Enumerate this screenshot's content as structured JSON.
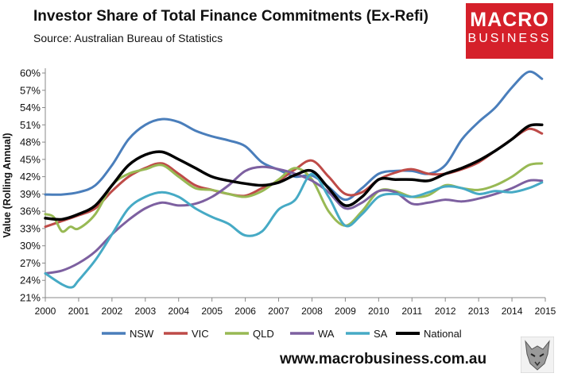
{
  "header": {
    "title": "Investor Share of Total Finance Commitments (Ex-Refi)",
    "subtitle": "Source: Australian Bureau of Statistics"
  },
  "logo": {
    "line1": "MACRO",
    "line2": "BUSINESS"
  },
  "footer": {
    "url": "www.macrobusiness.com.au"
  },
  "chart_data": {
    "type": "line",
    "title": "Investor Share of Total Finance Commitments (Ex-Refi)",
    "ylabel": "Value (Rolling Annual)",
    "xlabel": "",
    "ylim": [
      21,
      60
    ],
    "xlim": [
      2000,
      2015
    ],
    "grid": false,
    "legend_position": "bottom",
    "x_ticks": [
      "2000",
      "2001",
      "2002",
      "2003",
      "2004",
      "2005",
      "2006",
      "2007",
      "2008",
      "2009",
      "2010",
      "2011",
      "2012",
      "2013",
      "2014",
      "2015"
    ],
    "y_ticks": [
      "21%",
      "24%",
      "27%",
      "30%",
      "33%",
      "36%",
      "39%",
      "42%",
      "45%",
      "48%",
      "51%",
      "54%",
      "57%",
      "60%"
    ],
    "series": [
      {
        "name": "NSW",
        "color": "#4a7ebb",
        "width": 3,
        "x": [
          2000,
          2000.5,
          2001,
          2001.5,
          2002,
          2002.5,
          2003,
          2003.5,
          2004,
          2004.5,
          2005,
          2005.5,
          2006,
          2006.5,
          2007,
          2007.5,
          2008,
          2008.5,
          2009,
          2009.5,
          2010,
          2010.5,
          2011,
          2011.5,
          2012,
          2012.5,
          2013,
          2013.5,
          2014,
          2014.5,
          2014.9
        ],
        "y": [
          38.9,
          38.9,
          39.3,
          40.5,
          44,
          48.5,
          51,
          52,
          51.5,
          50,
          49,
          48.3,
          47.3,
          44.5,
          43.2,
          42,
          42.2,
          40.2,
          38,
          40,
          42.5,
          43,
          43,
          42.5,
          44,
          48.5,
          51.5,
          54,
          57.5,
          60.2,
          59
        ]
      },
      {
        "name": "VIC",
        "color": "#be4b48",
        "width": 3,
        "x": [
          2000,
          2000.5,
          2001,
          2001.5,
          2002,
          2002.5,
          2003,
          2003.5,
          2004,
          2004.5,
          2005,
          2005.5,
          2006,
          2006.5,
          2007,
          2007.5,
          2008,
          2008.5,
          2009,
          2009.5,
          2010,
          2010.5,
          2011,
          2011.5,
          2012,
          2012.5,
          2013,
          2013.5,
          2014,
          2014.5,
          2014.9
        ],
        "y": [
          33.3,
          34.3,
          35.3,
          36.5,
          39.5,
          42,
          43.5,
          44.3,
          42.5,
          40.5,
          39.7,
          39,
          38.7,
          40,
          41.3,
          43.3,
          44.8,
          42,
          39,
          39.3,
          41.5,
          42.7,
          43.3,
          42.5,
          42.5,
          43.3,
          44.5,
          46.5,
          48.5,
          50.3,
          49.5
        ]
      },
      {
        "name": "QLD",
        "color": "#98b954",
        "width": 3,
        "x": [
          2000,
          2000.25,
          2000.5,
          2000.75,
          2001,
          2001.5,
          2002,
          2002.5,
          2003,
          2003.5,
          2004,
          2004.5,
          2005,
          2005.5,
          2006,
          2006.5,
          2007,
          2007.5,
          2008,
          2008.5,
          2009,
          2009.5,
          2010,
          2010.5,
          2011,
          2011.5,
          2012,
          2012.5,
          2013,
          2013.5,
          2014,
          2014.5,
          2014.9
        ],
        "y": [
          35.5,
          35,
          32.5,
          33.3,
          33,
          35.5,
          40.5,
          42.5,
          43.3,
          44,
          42,
          40,
          39.7,
          39,
          38.5,
          39.5,
          41.5,
          43.5,
          41.5,
          36,
          33.5,
          36,
          39.5,
          39.5,
          38.5,
          38.8,
          40.5,
          40,
          39.7,
          40.5,
          42,
          44,
          44.3
        ]
      },
      {
        "name": "WA",
        "color": "#7d60a0",
        "width": 3,
        "x": [
          2000,
          2000.5,
          2001,
          2001.5,
          2002,
          2002.5,
          2003,
          2003.5,
          2004,
          2004.5,
          2005,
          2005.5,
          2006,
          2006.5,
          2007,
          2007.5,
          2008,
          2008.5,
          2009,
          2009.5,
          2010,
          2010.5,
          2011,
          2011.5,
          2012,
          2012.5,
          2013,
          2013.5,
          2014,
          2014.5,
          2014.9
        ],
        "y": [
          25.2,
          25.7,
          27,
          29,
          32,
          34.5,
          36.5,
          37.5,
          37,
          37.3,
          38.5,
          40.5,
          43,
          43.7,
          43.3,
          42.5,
          41.3,
          39.3,
          36.5,
          37.5,
          39.5,
          39.3,
          37.3,
          37.5,
          38,
          37.7,
          38.2,
          39,
          40,
          41.3,
          41.3
        ]
      },
      {
        "name": "SA",
        "color": "#46aac5",
        "width": 3,
        "x": [
          2000,
          2000.5,
          2000.8,
          2001,
          2001.5,
          2002,
          2002.5,
          2003,
          2003.5,
          2004,
          2004.5,
          2005,
          2005.5,
          2006,
          2006.5,
          2007,
          2007.5,
          2008,
          2008.5,
          2009,
          2009.5,
          2010,
          2010.5,
          2011,
          2011.5,
          2012,
          2012.5,
          2013,
          2013.5,
          2014,
          2014.5,
          2014.9
        ],
        "y": [
          25.2,
          23.3,
          22.8,
          24,
          27.5,
          32,
          36.5,
          38.5,
          39.3,
          38.5,
          36.5,
          35,
          33.8,
          31.8,
          32.5,
          36.3,
          38,
          42.5,
          38.5,
          33.5,
          35.5,
          38.5,
          39,
          38.5,
          39.3,
          40.3,
          40,
          39,
          39.5,
          39.3,
          40,
          41
        ]
      },
      {
        "name": "National",
        "color": "#000000",
        "width": 3.5,
        "x": [
          2000,
          2000.5,
          2001,
          2001.5,
          2002,
          2002.5,
          2003,
          2003.5,
          2004,
          2004.5,
          2005,
          2005.5,
          2006,
          2006.5,
          2007,
          2007.5,
          2008,
          2008.5,
          2009,
          2009.5,
          2010,
          2010.5,
          2011,
          2011.5,
          2012,
          2012.5,
          2013,
          2013.5,
          2014,
          2014.5,
          2014.9
        ],
        "y": [
          34.8,
          34.6,
          35.5,
          37,
          40.5,
          44,
          45.8,
          46.3,
          45,
          43.5,
          42,
          41.3,
          40.8,
          40.5,
          41,
          42.3,
          43,
          40,
          37,
          38.5,
          41.5,
          41.5,
          41.5,
          41.3,
          42.5,
          43.5,
          44.8,
          46.5,
          48.5,
          50.8,
          51
        ]
      }
    ]
  }
}
